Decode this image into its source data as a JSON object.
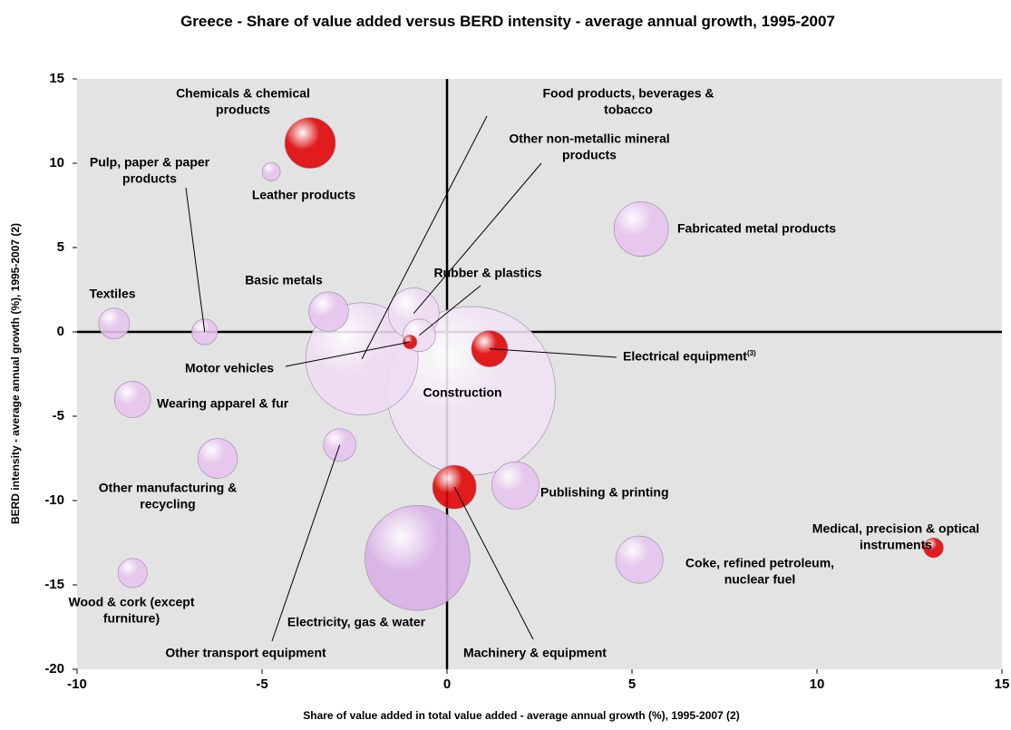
{
  "chart_data": {
    "type": "bubble",
    "title": "Greece - Share of value added versus BERD intensity - average annual growth, 1995-2007",
    "xlabel": "Share of value added in total value added - average annual growth (%), 1995-2007 (2)",
    "ylabel": "BERD intensity - average annual growth (%), 1995-2007 (2)",
    "xlim": [
      -10,
      15
    ],
    "xticks": [
      -10,
      -5,
      0,
      5,
      10,
      15
    ],
    "ylim": [
      -20,
      15
    ],
    "yticks": [
      -20,
      -15,
      -10,
      -5,
      0,
      5,
      10,
      15
    ],
    "labels": [
      [
        "Chemicals & chemical",
        "products"
      ],
      [
        "Leather products"
      ],
      [
        "Pulp, paper & paper",
        "products"
      ],
      [
        "Textiles"
      ],
      [
        "Basic metals"
      ],
      [
        "Food products, beverages &",
        "tobacco"
      ],
      [
        "Other non-metallic mineral",
        "products"
      ],
      [
        "Rubber & plastics"
      ],
      [
        "Motor vehicles"
      ],
      [
        "Electrical equipment"
      ],
      [
        "Construction"
      ],
      [
        "Fabricated metal products"
      ],
      [
        "Wearing apparel & fur"
      ],
      [
        "Other manufacturing &",
        "recycling"
      ],
      [
        "Other transport equipment"
      ],
      [
        "Publishing & printing"
      ],
      [
        "Machinery & equipment"
      ],
      [
        "Electricity, gas & water"
      ],
      [
        "Wood & cork (except",
        "furniture)"
      ],
      [
        "Coke, refined petroleum,",
        "nuclear fuel"
      ],
      [
        "Medical, precision & optical",
        "instruments"
      ]
    ],
    "electrical_note": "(3)",
    "x": [
      -3.7,
      -4.75,
      -6.55,
      -9.0,
      -3.2,
      -2.3,
      -0.9,
      -0.75,
      -1.0,
      1.15,
      0.65,
      5.25,
      -8.5,
      -6.2,
      -2.9,
      1.85,
      0.2,
      -0.8,
      -8.5,
      5.2,
      13.15
    ],
    "y": [
      11.2,
      9.5,
      0,
      0.5,
      1.2,
      -1.6,
      1.1,
      -0.2,
      -0.6,
      -1.0,
      -3.5,
      6.1,
      -4.0,
      -7.5,
      -6.7,
      -9.1,
      -9.2,
      -13.4,
      -14.3,
      -13.5,
      -12.8
    ],
    "sizes": [
      78,
      10,
      20,
      29,
      48,
      384,
      78,
      32,
      6,
      40,
      865,
      90,
      40,
      48,
      32,
      68,
      58,
      336,
      26,
      68,
      12
    ],
    "point_colors": [
      "#e00000",
      "#e6c4ee",
      "#e6c4ee",
      "#e6c4ee",
      "#e6c4ee",
      "#efdcf3",
      "#efdcf3",
      "#efdcf3",
      "#e00000",
      "#e00000",
      "#efe3f3",
      "#e6c4ee",
      "#e6c4ee",
      "#e6c4ee",
      "#e6c4ee",
      "#e6c4ee",
      "#e00000",
      "#d9b0e6",
      "#e6c4ee",
      "#e6c4ee",
      "#e00000"
    ],
    "plot_background": "#e3e3e3"
  }
}
